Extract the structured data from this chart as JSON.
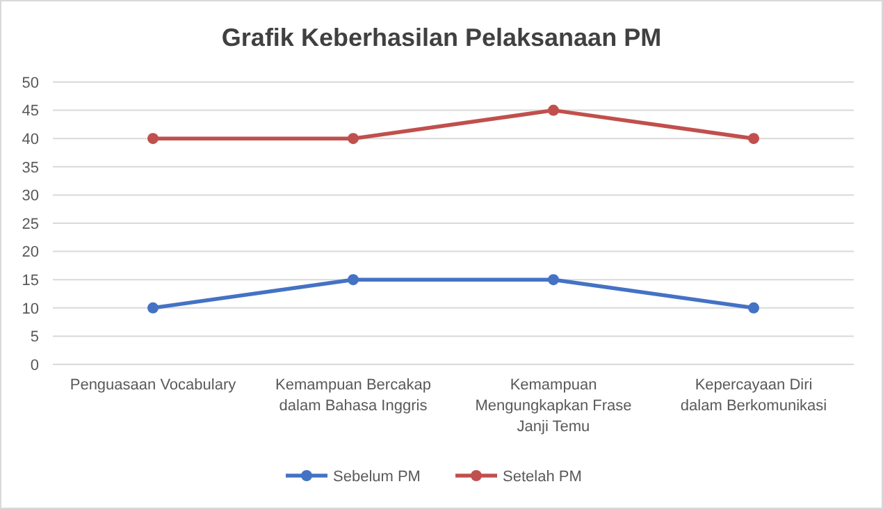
{
  "chart_data": {
    "type": "line",
    "title": "Grafik Keberhasilan Pelaksanaan PM",
    "categories": [
      "Penguasaan Vocabulary",
      "Kemampuan Bercakap dalam Bahasa Inggris",
      "Kemampuan Mengungkapkan Frase Janji Temu",
      "Kepercayaan Diri dalam Berkomunikasi"
    ],
    "series": [
      {
        "name": "Sebelum PM",
        "color": "#4472c4",
        "values": [
          10,
          15,
          15,
          10
        ]
      },
      {
        "name": "Setelah PM",
        "color": "#c0504d",
        "values": [
          40,
          40,
          45,
          40
        ]
      }
    ],
    "ylim": [
      0,
      50
    ],
    "yticks": [
      0,
      5,
      10,
      15,
      20,
      25,
      30,
      35,
      40,
      45,
      50
    ],
    "grid": "y",
    "legend": "bottom",
    "marker": "circle",
    "line_style": "solid"
  }
}
